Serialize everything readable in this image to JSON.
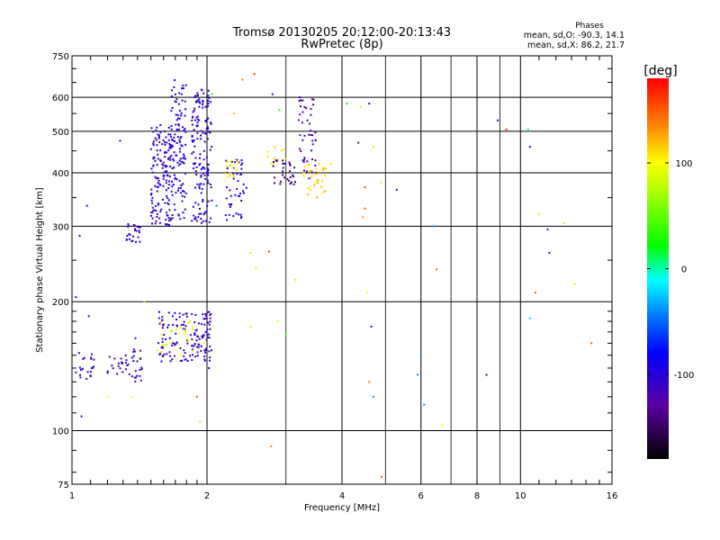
{
  "chart_data": {
    "type": "scatter",
    "title": "Tromsø 20130205 20:12:00-20:13:43",
    "subtitle": "RwPretec (8p)",
    "xlabel": "Frequency [MHz]",
    "ylabel": "Stationary phase Virtual Height [km]",
    "x_scale": "log",
    "y_scale": "log",
    "xlim": [
      1,
      16
    ],
    "ylim": [
      75,
      750
    ],
    "x_ticks": [
      1,
      2,
      4,
      6,
      8,
      10,
      16
    ],
    "x_tick_labels": [
      "1",
      "2",
      "4",
      "6",
      "8",
      "10",
      "16"
    ],
    "x_minor_ticks": [
      3,
      5,
      7,
      9
    ],
    "y_ticks": [
      75,
      100,
      200,
      300,
      400,
      500,
      600,
      750
    ],
    "y_tick_labels": [
      "75",
      "100",
      "200",
      "300",
      "400",
      "500",
      "600",
      "750"
    ],
    "grid": true,
    "stats": {
      "heading": "Phases",
      "line_o": "mean, sd,O: -90.3, 14.1",
      "line_x": "mean, sd,X: 86.2, 21.7"
    },
    "colorbar": {
      "label": "[deg]",
      "range": [
        -180,
        180
      ],
      "ticks": [
        100,
        0,
        -100
      ],
      "tick_labels": [
        "100",
        "0",
        "-100"
      ]
    },
    "clusters": [
      {
        "fmin": 1.02,
        "fmax": 1.12,
        "hmin": 130,
        "hmax": 155,
        "count": 22,
        "phase": -112,
        "sd": 8
      },
      {
        "fmin": 1.2,
        "fmax": 1.35,
        "hmin": 132,
        "hmax": 150,
        "count": 22,
        "phase": -112,
        "sd": 8
      },
      {
        "fmin": 1.35,
        "fmax": 1.45,
        "hmin": 130,
        "hmax": 165,
        "count": 22,
        "phase": -110,
        "sd": 10
      },
      {
        "fmin": 1.3,
        "fmax": 1.42,
        "hmin": 275,
        "hmax": 305,
        "count": 25,
        "phase": -110,
        "sd": 8
      },
      {
        "fmin": 1.5,
        "fmax": 1.66,
        "hmin": 300,
        "hmax": 520,
        "count": 140,
        "phase": -105,
        "sd": 15
      },
      {
        "fmin": 1.66,
        "fmax": 1.8,
        "hmin": 310,
        "hmax": 660,
        "count": 120,
        "phase": -100,
        "sd": 15
      },
      {
        "fmin": 1.85,
        "fmax": 2.05,
        "hmin": 305,
        "hmax": 630,
        "count": 150,
        "phase": -105,
        "sd": 15
      },
      {
        "fmin": 1.55,
        "fmax": 1.9,
        "hmin": 145,
        "hmax": 190,
        "count": 90,
        "phase": -105,
        "sd": 20
      },
      {
        "fmin": 1.9,
        "fmax": 2.05,
        "hmin": 145,
        "hmax": 190,
        "count": 55,
        "phase": -110,
        "sd": 12
      },
      {
        "fmin": 1.55,
        "fmax": 1.9,
        "hmin": 150,
        "hmax": 185,
        "count": 25,
        "phase": 95,
        "sd": 20
      },
      {
        "fmin": 2.2,
        "fmax": 2.45,
        "hmin": 310,
        "hmax": 430,
        "count": 45,
        "phase": -105,
        "sd": 12
      },
      {
        "fmin": 2.2,
        "fmax": 2.35,
        "hmin": 390,
        "hmax": 430,
        "count": 18,
        "phase": 105,
        "sd": 12
      },
      {
        "fmin": 2.8,
        "fmax": 3.15,
        "hmin": 375,
        "hmax": 430,
        "count": 30,
        "phase": -140,
        "sd": 15
      },
      {
        "fmin": 3.2,
        "fmax": 3.5,
        "hmin": 380,
        "hmax": 600,
        "count": 45,
        "phase": -130,
        "sd": 15
      },
      {
        "fmin": 3.25,
        "fmax": 3.7,
        "hmin": 350,
        "hmax": 420,
        "count": 35,
        "phase": 115,
        "sd": 12
      },
      {
        "fmin": 2.7,
        "fmax": 3.0,
        "hmin": 400,
        "hmax": 460,
        "count": 10,
        "phase": 110,
        "sd": 10
      }
    ],
    "points": [
      {
        "f": 1.02,
        "h": 205,
        "phase": -110
      },
      {
        "f": 1.04,
        "h": 285,
        "phase": -110
      },
      {
        "f": 1.05,
        "h": 108,
        "phase": -110
      },
      {
        "f": 1.08,
        "h": 335,
        "phase": -100
      },
      {
        "f": 1.09,
        "h": 185,
        "phase": -110
      },
      {
        "f": 1.28,
        "h": 475,
        "phase": -110
      },
      {
        "f": 1.45,
        "h": 200,
        "phase": 60
      },
      {
        "f": 1.2,
        "h": 120,
        "phase": 100
      },
      {
        "f": 1.36,
        "h": 120,
        "phase": 100
      },
      {
        "f": 2.05,
        "h": 610,
        "phase": 20
      },
      {
        "f": 2.4,
        "h": 660,
        "phase": 140
      },
      {
        "f": 2.55,
        "h": 680,
        "phase": 160
      },
      {
        "f": 2.3,
        "h": 550,
        "phase": 120
      },
      {
        "f": 2.5,
        "h": 260,
        "phase": 110
      },
      {
        "f": 2.75,
        "h": 262,
        "phase": 160
      },
      {
        "f": 2.57,
        "h": 240,
        "phase": 110
      },
      {
        "f": 2.8,
        "h": 610,
        "phase": -110
      },
      {
        "f": 2.9,
        "h": 560,
        "phase": 30
      },
      {
        "f": 3.15,
        "h": 225,
        "phase": 110
      },
      {
        "f": 3.22,
        "h": 600,
        "phase": -100
      },
      {
        "f": 2.78,
        "h": 92,
        "phase": 140
      },
      {
        "f": 1.97,
        "h": 160,
        "phase": 100
      },
      {
        "f": 1.93,
        "h": 105,
        "phase": 110
      },
      {
        "f": 1.9,
        "h": 120,
        "phase": 150
      },
      {
        "f": 2.5,
        "h": 175,
        "phase": 110
      },
      {
        "f": 2.88,
        "h": 180,
        "phase": 100
      },
      {
        "f": 3.0,
        "h": 168,
        "phase": 40
      },
      {
        "f": 2.98,
        "h": 420,
        "phase": -110
      },
      {
        "f": 3.78,
        "h": 420,
        "phase": 110
      },
      {
        "f": 4.1,
        "h": 580,
        "phase": 20
      },
      {
        "f": 4.35,
        "h": 470,
        "phase": -130
      },
      {
        "f": 4.4,
        "h": 570,
        "phase": 80
      },
      {
        "f": 4.6,
        "h": 580,
        "phase": -100
      },
      {
        "f": 4.7,
        "h": 460,
        "phase": 80
      },
      {
        "f": 4.5,
        "h": 370,
        "phase": 155
      },
      {
        "f": 4.5,
        "h": 330,
        "phase": 145
      },
      {
        "f": 4.45,
        "h": 315,
        "phase": 130
      },
      {
        "f": 4.9,
        "h": 380,
        "phase": 110
      },
      {
        "f": 5.3,
        "h": 365,
        "phase": -110
      },
      {
        "f": 4.55,
        "h": 210,
        "phase": 100
      },
      {
        "f": 4.65,
        "h": 175,
        "phase": -110
      },
      {
        "f": 4.6,
        "h": 130,
        "phase": 140
      },
      {
        "f": 4.7,
        "h": 120,
        "phase": -40
      },
      {
        "f": 4.9,
        "h": 78,
        "phase": 150
      },
      {
        "f": 5.9,
        "h": 135,
        "phase": -40
      },
      {
        "f": 6.0,
        "h": 150,
        "phase": -40
      },
      {
        "f": 6.1,
        "h": 115,
        "phase": -40
      },
      {
        "f": 6.4,
        "h": 300,
        "phase": -40
      },
      {
        "f": 6.5,
        "h": 238,
        "phase": 150
      },
      {
        "f": 6.7,
        "h": 103,
        "phase": 100
      },
      {
        "f": 8.9,
        "h": 530,
        "phase": -110
      },
      {
        "f": 9.3,
        "h": 505,
        "phase": 170
      },
      {
        "f": 10.4,
        "h": 505,
        "phase": 0
      },
      {
        "f": 10.5,
        "h": 460,
        "phase": -100
      },
      {
        "f": 11.0,
        "h": 320,
        "phase": 110
      },
      {
        "f": 11.5,
        "h": 295,
        "phase": -110
      },
      {
        "f": 11.6,
        "h": 260,
        "phase": -110
      },
      {
        "f": 10.8,
        "h": 210,
        "phase": 150
      },
      {
        "f": 10.5,
        "h": 183,
        "phase": -20
      },
      {
        "f": 12.5,
        "h": 305,
        "phase": 110
      },
      {
        "f": 13.2,
        "h": 220,
        "phase": 110
      },
      {
        "f": 14.4,
        "h": 160,
        "phase": 150
      },
      {
        "f": 8.4,
        "h": 135,
        "phase": -110
      },
      {
        "f": 2.02,
        "h": 140,
        "phase": -100
      },
      {
        "f": 2.1,
        "h": 335,
        "phase": -40
      }
    ]
  }
}
